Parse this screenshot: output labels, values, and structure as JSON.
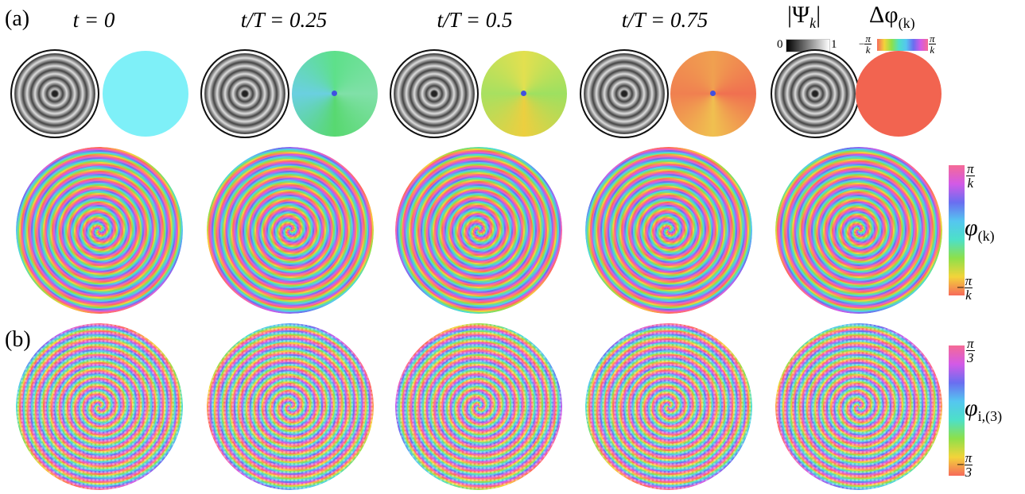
{
  "panel_a_label": "(a)",
  "panel_b_label": "(b)",
  "columns": [
    "t = 0",
    "t/T = 0.25",
    "t/T = 0.5",
    "t/T = 0.75"
  ],
  "magnitude_colorbar": {
    "label_base": "|Ψ",
    "label_sub": "k",
    "label_tail": "|",
    "min": "0",
    "max": "1"
  },
  "phase_difference_colorbar": {
    "label_base": "Δφ",
    "label_sub": "(k)",
    "min_sign": "−",
    "min_num": "π",
    "min_den": "k",
    "max_num": "π",
    "max_den": "k"
  },
  "phase_colorbar_a": {
    "label_base": "φ",
    "label_sub": "(k)",
    "max_num": "π",
    "max_den": "k",
    "min_sign": "−",
    "min_num": "π",
    "min_den": "k"
  },
  "phase_colorbar_b": {
    "label_base": "φ",
    "label_sub": "i,(3)",
    "max_num": "π",
    "max_den": "3",
    "min_sign": "−",
    "min_num": "π",
    "min_den": "3"
  }
}
